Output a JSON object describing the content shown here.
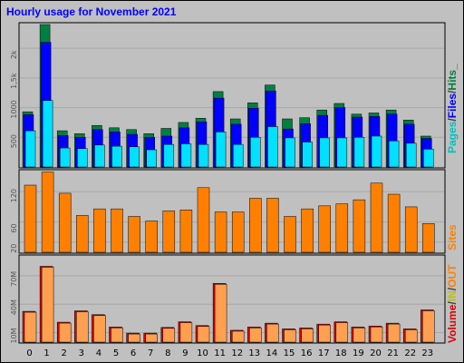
{
  "title": "Hourly usage for November 2021",
  "colors": {
    "background": "#c0c0c0",
    "pages": "#00e0ff",
    "files": "#0000ff",
    "hits": "#008040",
    "sites": "#ff8000",
    "kb_in": "#ffff00",
    "kb_out": "#ffff00",
    "volume": "#e00000",
    "volume_fill": "#ff9f50",
    "title": "#0000ff"
  },
  "legend": {
    "panel1": {
      "pages": "Pages",
      "sep1": "/",
      "files": "Files",
      "sep2": "/",
      "hits": "Hits_"
    },
    "panel2": {
      "sites": "Sites"
    },
    "panel3": {
      "volume": "Volume",
      "sep1": "/",
      "in": "IN",
      "sep2": "/",
      "out": "OUT"
    }
  },
  "chart_data": [
    {
      "type": "bar",
      "panel": "hits_files_pages",
      "categories": [
        "0",
        "1",
        "2",
        "3",
        "4",
        "5",
        "6",
        "7",
        "8",
        "9",
        "10",
        "11",
        "12",
        "13",
        "14",
        "15",
        "16",
        "17",
        "18",
        "19",
        "20",
        "21",
        "22",
        "23"
      ],
      "ylim": [
        0,
        2400
      ],
      "yticks": [
        "500",
        "1000",
        "1,5k",
        "2k"
      ],
      "ytick_values": [
        500,
        1000,
        1500,
        2000
      ],
      "series": [
        {
          "name": "Hits",
          "values": [
            930,
            2400,
            610,
            560,
            700,
            660,
            630,
            560,
            650,
            750,
            820,
            1270,
            810,
            1080,
            1380,
            810,
            830,
            960,
            1070,
            890,
            910,
            960,
            790,
            520
          ]
        },
        {
          "name": "Files",
          "values": [
            880,
            2100,
            530,
            500,
            630,
            590,
            550,
            500,
            520,
            660,
            760,
            1160,
            720,
            990,
            1280,
            640,
            730,
            870,
            1000,
            840,
            850,
            890,
            720,
            480
          ]
        },
        {
          "name": "Pages",
          "values": [
            610,
            1120,
            320,
            310,
            370,
            350,
            340,
            290,
            380,
            390,
            380,
            590,
            380,
            500,
            680,
            490,
            420,
            490,
            490,
            500,
            520,
            440,
            400,
            300
          ]
        }
      ]
    },
    {
      "type": "bar",
      "panel": "sites",
      "categories": [
        "0",
        "1",
        "2",
        "3",
        "4",
        "5",
        "6",
        "7",
        "8",
        "9",
        "10",
        "11",
        "12",
        "13",
        "14",
        "15",
        "16",
        "17",
        "18",
        "19",
        "20",
        "21",
        "22",
        "23"
      ],
      "ylim": [
        0,
        160
      ],
      "yticks": [
        "20",
        "60",
        "120"
      ],
      "ytick_values": [
        20,
        60,
        120
      ],
      "series": [
        {
          "name": "Sites",
          "values": [
            133,
            159,
            117,
            73,
            86,
            86,
            71,
            62,
            82,
            84,
            128,
            80,
            80,
            107,
            107,
            71,
            86,
            92,
            96,
            104,
            137,
            115,
            90,
            57
          ]
        }
      ]
    },
    {
      "type": "bar",
      "panel": "volume",
      "categories": [
        "0",
        "1",
        "2",
        "3",
        "4",
        "5",
        "6",
        "7",
        "8",
        "9",
        "10",
        "11",
        "12",
        "13",
        "14",
        "15",
        "16",
        "17",
        "18",
        "19",
        "20",
        "21",
        "22",
        "23"
      ],
      "ylim": [
        0,
        90
      ],
      "yticks": [
        "10M",
        "40M",
        "70M"
      ],
      "ytick_values": [
        10,
        40,
        70
      ],
      "series": [
        {
          "name": "Volume",
          "values": [
            32.5,
            80,
            21,
            33,
            29,
            16,
            9.5,
            9.5,
            15.5,
            21.5,
            17.5,
            62,
            12.5,
            16,
            20,
            14,
            15,
            19,
            21.5,
            16,
            17,
            20,
            14,
            34
          ]
        }
      ]
    }
  ]
}
